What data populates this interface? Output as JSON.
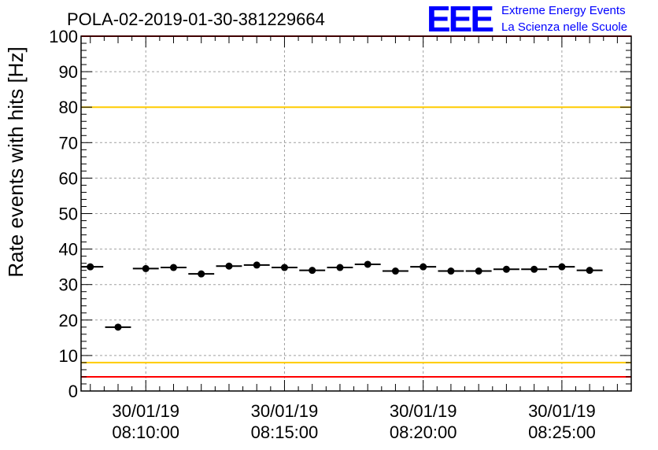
{
  "chart_data": {
    "type": "scatter",
    "title": "POLA-02-2019-01-30-381229664",
    "ylabel": "Rate events with hits [Hz]",
    "xlabel": "",
    "ylim": [
      0,
      100
    ],
    "yticks": [
      0,
      10,
      20,
      30,
      40,
      50,
      60,
      70,
      80,
      90,
      100
    ],
    "xlim": [
      "08:07:40",
      "08:27:30"
    ],
    "xtick_labels": [
      {
        "time": "08:10:00",
        "date": "30/01/19",
        "time_label": "08:10:00"
      },
      {
        "time": "08:15:00",
        "date": "30/01/19",
        "time_label": "08:15:00"
      },
      {
        "time": "08:20:00",
        "date": "30/01/19",
        "time_label": "08:20:00"
      },
      {
        "time": "08:25:00",
        "date": "30/01/19",
        "time_label": "08:25:00"
      }
    ],
    "bin_width_s": 60,
    "grid": true,
    "series": [
      {
        "marker_color": "#000000",
        "points": [
          {
            "x": "08:08:00",
            "y": 35.0
          },
          {
            "x": "08:09:00",
            "y": 18.0
          },
          {
            "x": "08:10:00",
            "y": 34.5
          },
          {
            "x": "08:11:00",
            "y": 34.8
          },
          {
            "x": "08:12:00",
            "y": 33.0
          },
          {
            "x": "08:13:00",
            "y": 35.2
          },
          {
            "x": "08:14:00",
            "y": 35.5
          },
          {
            "x": "08:15:00",
            "y": 34.8
          },
          {
            "x": "08:16:00",
            "y": 34.0
          },
          {
            "x": "08:17:00",
            "y": 34.8
          },
          {
            "x": "08:18:00",
            "y": 35.7
          },
          {
            "x": "08:19:00",
            "y": 33.8
          },
          {
            "x": "08:20:00",
            "y": 35.0
          },
          {
            "x": "08:21:00",
            "y": 33.8
          },
          {
            "x": "08:22:00",
            "y": 33.8
          },
          {
            "x": "08:23:00",
            "y": 34.3
          },
          {
            "x": "08:24:00",
            "y": 34.3
          },
          {
            "x": "08:25:00",
            "y": 35.0
          },
          {
            "x": "08:26:00",
            "y": 34.0
          }
        ]
      }
    ],
    "reference_lines": [
      {
        "y": 100,
        "color": "#ff0000"
      },
      {
        "y": 80,
        "color": "#ffcc00"
      },
      {
        "y": 8,
        "color": "#ffcc00"
      },
      {
        "y": 4,
        "color": "#ff0000"
      }
    ]
  },
  "logo": {
    "mark": "EEE",
    "line1": "Extreme Energy Events",
    "line2": "La Scienza nelle Scuole",
    "color": "#0000ff"
  }
}
